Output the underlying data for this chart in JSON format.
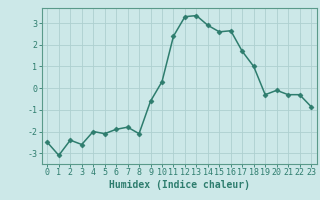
{
  "x": [
    0,
    1,
    2,
    3,
    4,
    5,
    6,
    7,
    8,
    9,
    10,
    11,
    12,
    13,
    14,
    15,
    16,
    17,
    18,
    19,
    20,
    21,
    22,
    23
  ],
  "y": [
    -2.5,
    -3.1,
    -2.4,
    -2.6,
    -2.0,
    -2.1,
    -1.9,
    -1.8,
    -2.1,
    -0.6,
    0.3,
    2.4,
    3.3,
    3.35,
    2.9,
    2.6,
    2.65,
    1.7,
    1.0,
    -0.3,
    -0.1,
    -0.3,
    -0.3,
    -0.85
  ],
  "line_color": "#2e7d6e",
  "marker": "D",
  "marker_size": 2.5,
  "bg_color": "#cce8e8",
  "grid_color": "#aed0d0",
  "xlabel": "Humidex (Indice chaleur)",
  "ylim": [
    -3.5,
    3.7
  ],
  "xlim": [
    -0.5,
    23.5
  ],
  "yticks": [
    -3,
    -2,
    -1,
    0,
    1,
    2,
    3
  ],
  "xticks": [
    0,
    1,
    2,
    3,
    4,
    5,
    6,
    7,
    8,
    9,
    10,
    11,
    12,
    13,
    14,
    15,
    16,
    17,
    18,
    19,
    20,
    21,
    22,
    23
  ],
  "tick_color": "#2e7d6e",
  "axis_color": "#5a9a8a",
  "label_fontsize": 7,
  "tick_fontsize": 6,
  "linewidth": 1.1
}
